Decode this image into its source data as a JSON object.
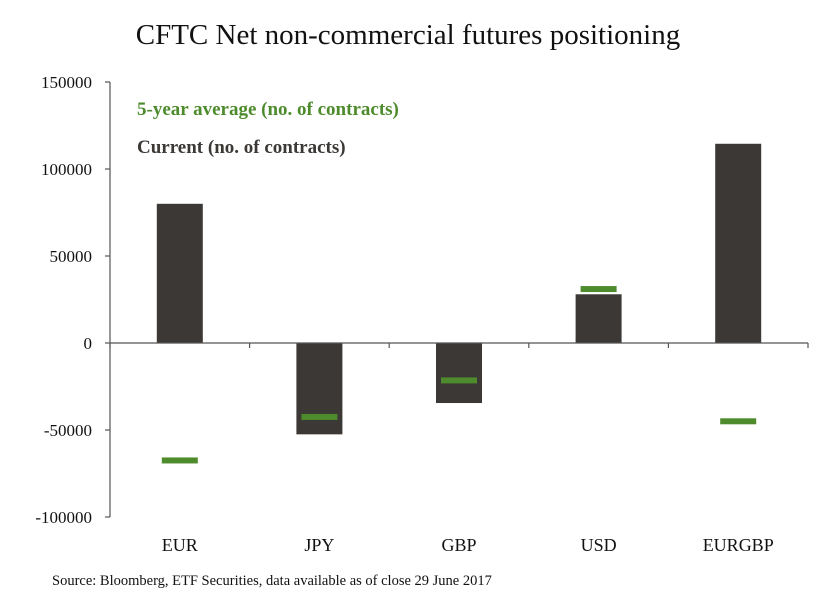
{
  "chart_data": {
    "type": "bar",
    "title": "CFTC Net non-commercial futures positioning",
    "categories": [
      "EUR",
      "JPY",
      "GBP",
      "USD",
      "EURGBP"
    ],
    "series": [
      {
        "name": "Current (no. of contracts)",
        "kind": "bar",
        "color": "#3b3835",
        "values": [
          80000,
          -52500,
          -34500,
          28000,
          114500
        ]
      },
      {
        "name": "5-year average (no. of contracts)",
        "kind": "marker",
        "color": "#4d8b2c",
        "values": [
          -67500,
          -42500,
          -21500,
          31000,
          -45000
        ]
      }
    ],
    "yticks": [
      150000,
      100000,
      50000,
      0,
      -50000,
      -100000
    ],
    "ylim": [
      -100000,
      150000
    ],
    "xlabel": "",
    "ylabel": "",
    "legend": {
      "position": "top-left",
      "avg_label": "5-year average (no. of contracts)",
      "current_label": "Current (no. of contracts)"
    },
    "source": "Source: Bloomberg, ETF Securities, data available as of close 29 June 2017"
  }
}
